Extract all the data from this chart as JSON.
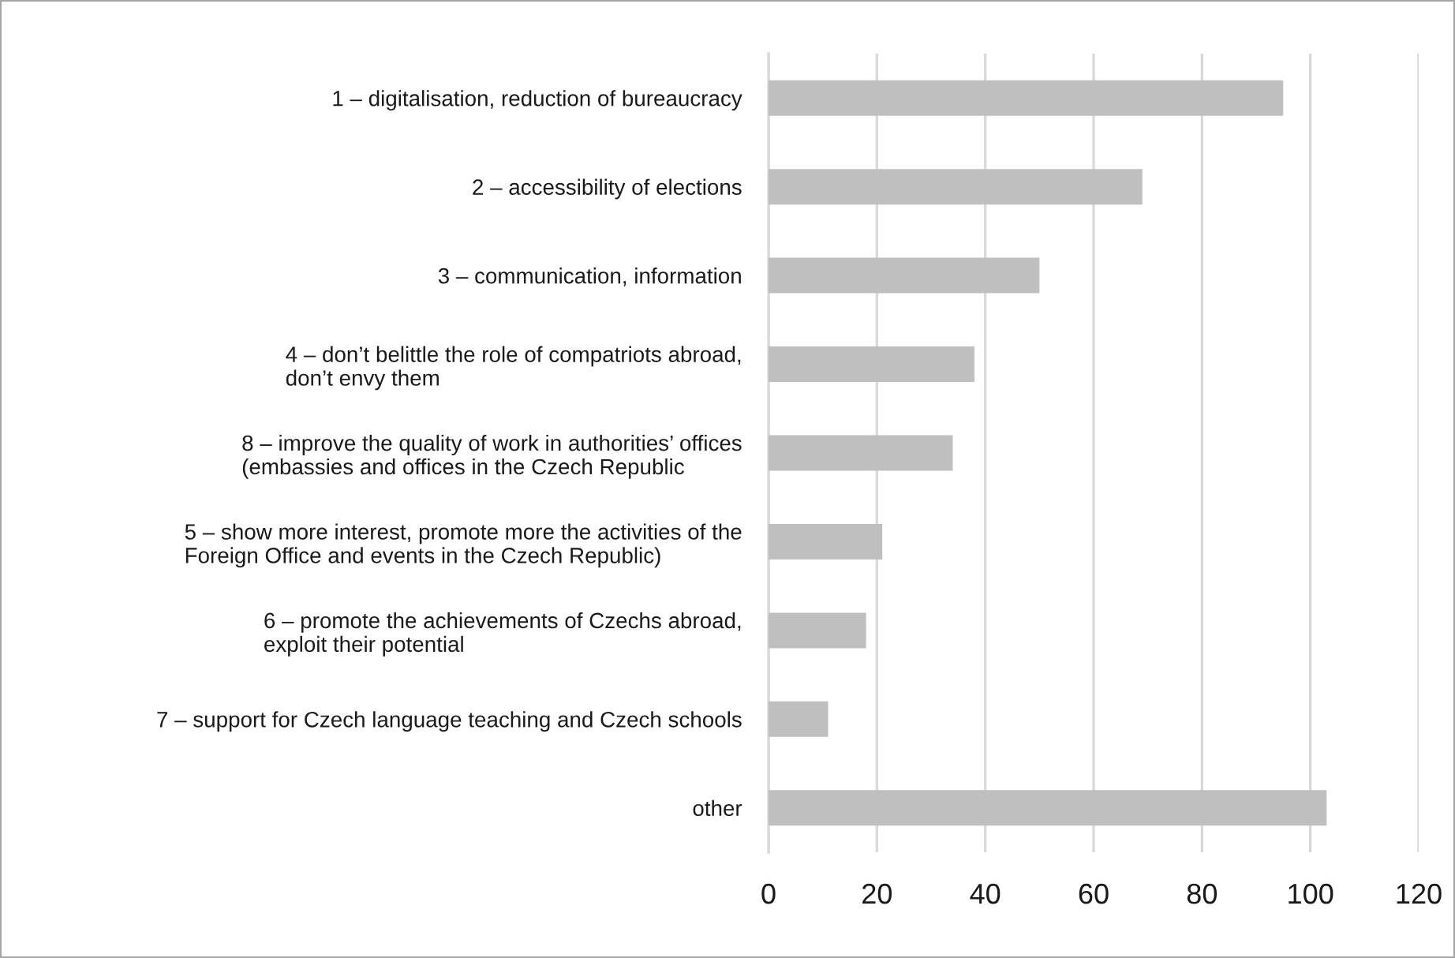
{
  "chart_data": {
    "type": "bar",
    "orientation": "horizontal",
    "categories": [
      "1 – digitalisation, reduction of bureaucracy",
      "2 – accessibility of elections",
      "3 – communication, information",
      "4 – don’t belittle the role of compatriots abroad,\ndon’t envy them",
      "8 – improve the quality of work in authorities’ offices\n(embassies and offices in the Czech Republic",
      "5 – show more interest, promote more the activities of the\nForeign Office and events in the Czech Republic)",
      "6 – promote the achievements of Czechs abroad,\nexploit their potential",
      "7 – support for Czech language teaching and Czech schools",
      "other"
    ],
    "values": [
      95,
      69,
      50,
      38,
      34,
      21,
      18,
      11,
      103
    ],
    "color": "#bfbfbf",
    "xlim": [
      0,
      120
    ],
    "xticks": [
      0,
      20,
      40,
      60,
      80,
      100,
      120
    ],
    "grid": "x"
  }
}
